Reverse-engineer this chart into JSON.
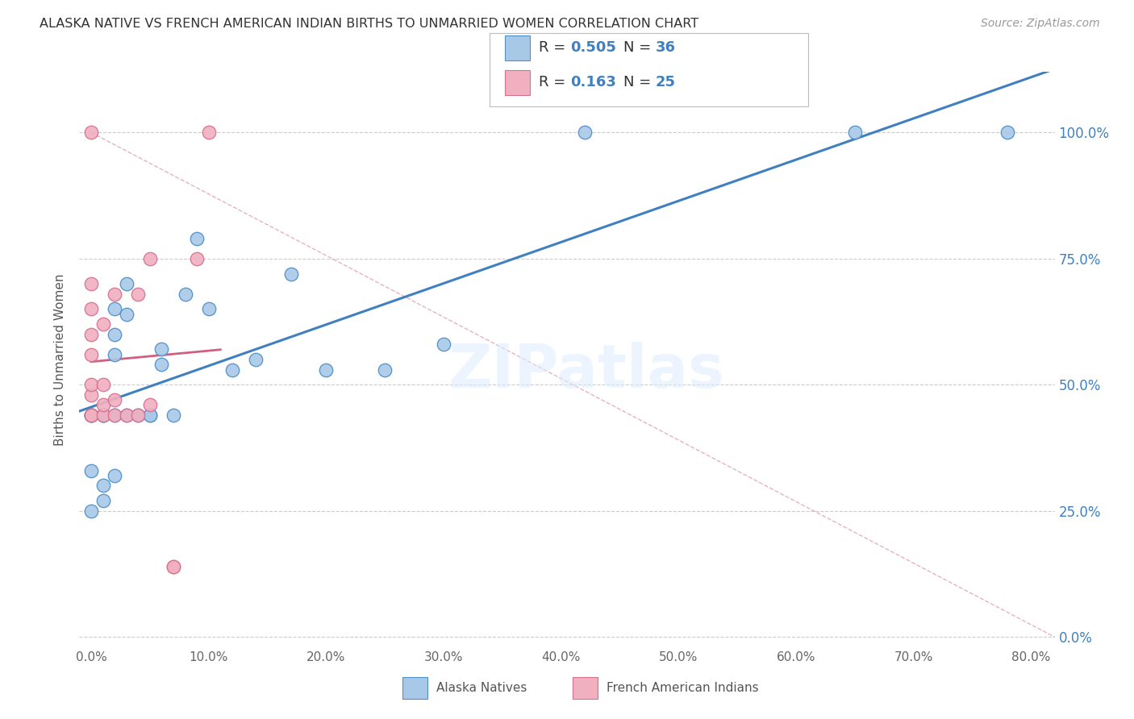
{
  "title": "ALASKA NATIVE VS FRENCH AMERICAN INDIAN BIRTHS TO UNMARRIED WOMEN CORRELATION CHART",
  "source": "Source: ZipAtlas.com",
  "ylabel_label": "Births to Unmarried Women",
  "legend_label_1": "Alaska Natives",
  "legend_label_2": "French American Indians",
  "R1": 0.505,
  "N1": 36,
  "R2": 0.163,
  "N2": 25,
  "color_blue_fill": "#a8c8e8",
  "color_blue_edge": "#5090c8",
  "color_pink_fill": "#f0b0c0",
  "color_pink_edge": "#d87090",
  "color_line_blue": "#4080c0",
  "color_line_pink": "#d06080",
  "color_diag": "#cccccc",
  "watermark": "ZIPatlas",
  "alaska_x": [
    0.0,
    0.0,
    0.0,
    0.0,
    0.0,
    0.01,
    0.01,
    0.01,
    0.01,
    0.01,
    0.02,
    0.02,
    0.02,
    0.02,
    0.02,
    0.03,
    0.03,
    0.03,
    0.04,
    0.05,
    0.05,
    0.06,
    0.06,
    0.07,
    0.08,
    0.09,
    0.1,
    0.12,
    0.14,
    0.17,
    0.2,
    0.25,
    0.3,
    0.42,
    0.65,
    0.78
  ],
  "alaska_y": [
    0.44,
    0.44,
    0.44,
    0.33,
    0.25,
    0.44,
    0.44,
    0.44,
    0.3,
    0.27,
    0.65,
    0.6,
    0.56,
    0.44,
    0.32,
    0.7,
    0.64,
    0.44,
    0.44,
    0.44,
    0.44,
    0.57,
    0.54,
    0.44,
    0.68,
    0.79,
    0.65,
    0.53,
    0.55,
    0.72,
    0.53,
    0.53,
    0.58,
    1.0,
    1.0,
    1.0
  ],
  "french_x": [
    0.0,
    0.0,
    0.0,
    0.0,
    0.0,
    0.0,
    0.0,
    0.0,
    0.0,
    0.01,
    0.01,
    0.01,
    0.01,
    0.02,
    0.02,
    0.02,
    0.03,
    0.04,
    0.04,
    0.05,
    0.05,
    0.07,
    0.07,
    0.09,
    0.1
  ],
  "french_y": [
    0.44,
    0.44,
    0.48,
    0.5,
    0.56,
    0.6,
    0.65,
    0.7,
    1.0,
    0.44,
    0.46,
    0.5,
    0.62,
    0.44,
    0.47,
    0.68,
    0.44,
    0.44,
    0.68,
    0.46,
    0.75,
    0.14,
    0.14,
    0.75,
    1.0
  ],
  "xlim": [
    -0.01,
    0.82
  ],
  "ylim": [
    -0.02,
    1.12
  ],
  "x_ticks": [
    0.0,
    0.1,
    0.2,
    0.3,
    0.4,
    0.5,
    0.6,
    0.7,
    0.8
  ],
  "y_ticks": [
    0.0,
    0.25,
    0.5,
    0.75,
    1.0
  ]
}
